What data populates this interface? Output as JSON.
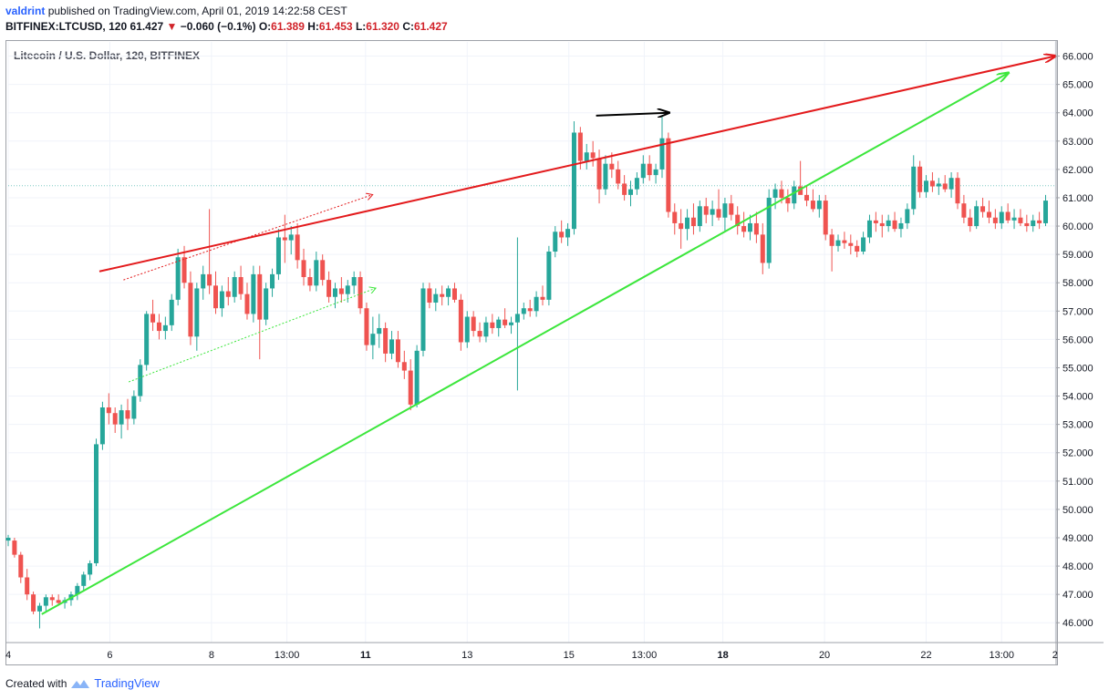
{
  "header": {
    "author": "valdrint",
    "published_text": "published on TradingView.com, April 01, 2019 14:22:58 CEST"
  },
  "quote": {
    "symbol": "BITFINEX:LTCUSD, 120",
    "last": "61.427",
    "arrow": "▼",
    "change": "−0.060 (−0.1%)",
    "open_label": "O:",
    "open": "61.389",
    "high_label": "H:",
    "high": "61.453",
    "low_label": "L:",
    "low": "61.320",
    "close_label": "C:",
    "close": "61.427"
  },
  "footer": {
    "created_with": "Created with",
    "brand": "TradingView"
  },
  "colors": {
    "up": "#26a69a",
    "down": "#ef5350",
    "resistance": "#e31a1c",
    "support": "#3ce63c",
    "arrow": "#000000"
  },
  "chart_data": {
    "type": "candlestick",
    "title": "Litecoin / U.S. Dollar, 120, BITFINEX",
    "ylim": [
      45.3,
      66.5
    ],
    "xlim": [
      0,
      100
    ],
    "y_ticks": [
      "46.000",
      "47.000",
      "48.000",
      "49.000",
      "50.000",
      "51.000",
      "52.000",
      "53.000",
      "54.000",
      "55.000",
      "56.000",
      "57.000",
      "58.000",
      "59.000",
      "60.000",
      "61.000",
      "62.000",
      "63.000",
      "64.000",
      "65.000",
      "66.000"
    ],
    "x_ticks": [
      {
        "x": 0.0,
        "label": "4"
      },
      {
        "x": 9.7,
        "label": "6"
      },
      {
        "x": 19.4,
        "label": "8"
      },
      {
        "x": 26.6,
        "label": "13:00"
      },
      {
        "x": 34.1,
        "label": "11"
      },
      {
        "x": 43.8,
        "label": "13"
      },
      {
        "x": 53.5,
        "label": "15"
      },
      {
        "x": 60.7,
        "label": "13:00"
      },
      {
        "x": 68.2,
        "label": "18"
      },
      {
        "x": 77.9,
        "label": "20"
      },
      {
        "x": 87.6,
        "label": "22"
      },
      {
        "x": 94.8,
        "label": "13:00"
      },
      {
        "x": 99.9,
        "label": "2"
      }
    ],
    "candles": [
      [
        0.0,
        48.9,
        49.1,
        48.7,
        49.0
      ],
      [
        0.6,
        48.9,
        49.0,
        48.3,
        48.4
      ],
      [
        1.2,
        48.4,
        48.5,
        47.4,
        47.6
      ],
      [
        1.8,
        47.6,
        47.9,
        46.8,
        47.0
      ],
      [
        2.4,
        47.0,
        47.1,
        46.3,
        46.4
      ],
      [
        3.0,
        46.4,
        46.7,
        45.8,
        46.6
      ],
      [
        3.6,
        46.6,
        47.0,
        46.4,
        46.9
      ],
      [
        4.2,
        46.9,
        47.0,
        46.6,
        46.8
      ],
      [
        4.8,
        46.8,
        47.0,
        46.6,
        46.7
      ],
      [
        5.4,
        46.7,
        46.9,
        46.5,
        46.8
      ],
      [
        6.0,
        46.8,
        47.1,
        46.6,
        47.0
      ],
      [
        6.6,
        47.0,
        47.4,
        46.8,
        47.3
      ],
      [
        7.2,
        47.3,
        47.8,
        47.1,
        47.7
      ],
      [
        7.8,
        47.7,
        48.2,
        47.5,
        48.1
      ],
      [
        8.4,
        48.1,
        52.5,
        48.0,
        52.3
      ],
      [
        9.0,
        52.3,
        53.8,
        52.1,
        53.6
      ],
      [
        9.6,
        53.6,
        54.1,
        53.0,
        53.4
      ],
      [
        10.2,
        53.4,
        53.6,
        52.7,
        53.0
      ],
      [
        10.8,
        53.0,
        53.7,
        52.5,
        53.5
      ],
      [
        11.4,
        53.5,
        53.9,
        52.8,
        53.2
      ],
      [
        12.0,
        53.2,
        54.2,
        53.0,
        54.0
      ],
      [
        12.6,
        54.0,
        55.3,
        53.8,
        55.1
      ],
      [
        13.2,
        55.1,
        57.0,
        54.9,
        56.9
      ],
      [
        13.8,
        56.9,
        57.4,
        56.3,
        56.6
      ],
      [
        14.4,
        56.6,
        56.9,
        56.0,
        56.3
      ],
      [
        15.0,
        56.3,
        56.8,
        56.0,
        56.5
      ],
      [
        15.6,
        56.5,
        57.6,
        56.3,
        57.4
      ],
      [
        16.2,
        57.4,
        59.2,
        57.2,
        58.9
      ],
      [
        16.8,
        58.9,
        59.3,
        57.8,
        58.0
      ],
      [
        17.4,
        58.0,
        58.4,
        55.8,
        56.1
      ],
      [
        18.0,
        56.1,
        58.0,
        55.6,
        57.8
      ],
      [
        18.6,
        57.8,
        58.6,
        57.4,
        58.3
      ],
      [
        19.2,
        58.3,
        60.6,
        57.6,
        57.9
      ],
      [
        19.8,
        57.9,
        58.4,
        56.9,
        57.1
      ],
      [
        20.4,
        57.1,
        57.9,
        56.8,
        57.7
      ],
      [
        21.0,
        57.7,
        58.2,
        57.2,
        57.5
      ],
      [
        21.6,
        57.5,
        58.4,
        57.3,
        58.2
      ],
      [
        22.2,
        58.2,
        58.6,
        57.4,
        57.6
      ],
      [
        22.8,
        57.6,
        58.0,
        56.7,
        56.9
      ],
      [
        23.4,
        56.9,
        58.6,
        56.6,
        58.3
      ],
      [
        24.0,
        58.3,
        58.6,
        55.3,
        56.7
      ],
      [
        24.6,
        56.7,
        58.0,
        56.5,
        57.8
      ],
      [
        25.2,
        57.8,
        58.5,
        57.5,
        58.3
      ],
      [
        25.8,
        58.3,
        59.9,
        58.1,
        59.6
      ],
      [
        26.4,
        59.6,
        60.4,
        58.7,
        59.5
      ],
      [
        27.0,
        59.5,
        60.0,
        59.0,
        59.7
      ],
      [
        27.6,
        59.7,
        60.1,
        58.5,
        58.8
      ],
      [
        28.2,
        58.8,
        59.2,
        57.9,
        58.2
      ],
      [
        28.8,
        58.2,
        58.5,
        57.7,
        57.9
      ],
      [
        29.4,
        57.9,
        59.1,
        57.7,
        58.8
      ],
      [
        30.0,
        58.8,
        59.0,
        57.9,
        58.1
      ],
      [
        30.6,
        58.1,
        58.4,
        57.3,
        57.5
      ],
      [
        31.2,
        57.5,
        58.0,
        57.1,
        57.8
      ],
      [
        31.8,
        57.8,
        58.2,
        57.3,
        57.6
      ],
      [
        32.4,
        57.6,
        58.1,
        57.3,
        57.9
      ],
      [
        33.0,
        57.9,
        58.4,
        57.6,
        58.2
      ],
      [
        33.6,
        58.2,
        58.4,
        56.9,
        57.1
      ],
      [
        34.2,
        57.1,
        57.3,
        55.6,
        55.8
      ],
      [
        34.8,
        55.8,
        56.8,
        55.3,
        56.2
      ],
      [
        35.4,
        56.2,
        56.9,
        55.7,
        56.4
      ],
      [
        36.0,
        56.4,
        56.6,
        55.2,
        55.5
      ],
      [
        36.6,
        55.5,
        56.3,
        55.3,
        56.0
      ],
      [
        37.2,
        56.0,
        56.3,
        55.0,
        55.2
      ],
      [
        37.8,
        55.2,
        55.6,
        54.6,
        54.9
      ],
      [
        38.4,
        54.9,
        55.3,
        53.5,
        53.7
      ],
      [
        39.0,
        53.7,
        55.8,
        53.6,
        55.6
      ],
      [
        39.6,
        55.6,
        58.0,
        55.4,
        57.8
      ],
      [
        40.2,
        57.8,
        58.0,
        57.1,
        57.3
      ],
      [
        40.8,
        57.3,
        57.8,
        57.0,
        57.6
      ],
      [
        41.4,
        57.6,
        57.9,
        57.2,
        57.5
      ],
      [
        42.0,
        57.5,
        57.9,
        57.2,
        57.8
      ],
      [
        42.6,
        57.8,
        58.0,
        57.3,
        57.4
      ],
      [
        43.2,
        57.4,
        57.6,
        55.6,
        55.9
      ],
      [
        43.8,
        55.9,
        57.0,
        55.7,
        56.8
      ],
      [
        44.4,
        56.8,
        57.0,
        56.1,
        56.3
      ],
      [
        45.0,
        56.3,
        56.6,
        55.9,
        56.1
      ],
      [
        45.6,
        56.1,
        56.8,
        55.9,
        56.6
      ],
      [
        46.2,
        56.6,
        56.9,
        56.2,
        56.4
      ],
      [
        46.8,
        56.4,
        56.8,
        56.1,
        56.7
      ],
      [
        47.4,
        56.7,
        57.1,
        56.4,
        56.5
      ],
      [
        48.0,
        56.5,
        56.8,
        56.2,
        56.6
      ],
      [
        48.6,
        56.6,
        59.6,
        54.2,
        56.9
      ],
      [
        49.2,
        56.9,
        57.3,
        56.7,
        57.1
      ],
      [
        49.8,
        57.1,
        57.4,
        56.8,
        57.0
      ],
      [
        50.4,
        57.0,
        57.7,
        56.8,
        57.5
      ],
      [
        51.0,
        57.5,
        57.9,
        57.2,
        57.4
      ],
      [
        51.6,
        57.4,
        59.3,
        57.2,
        59.1
      ],
      [
        52.2,
        59.1,
        60.0,
        58.9,
        59.8
      ],
      [
        52.8,
        59.8,
        60.2,
        59.4,
        59.6
      ],
      [
        53.4,
        59.6,
        60.1,
        59.3,
        59.9
      ],
      [
        54.0,
        59.9,
        63.7,
        59.7,
        63.3
      ],
      [
        54.6,
        63.3,
        63.5,
        62.0,
        62.3
      ],
      [
        55.2,
        62.3,
        62.9,
        62.0,
        62.6
      ],
      [
        55.8,
        62.6,
        63.0,
        62.1,
        62.4
      ],
      [
        56.4,
        62.4,
        62.7,
        60.8,
        61.3
      ],
      [
        57.0,
        61.3,
        62.5,
        61.1,
        62.2
      ],
      [
        57.6,
        62.2,
        62.6,
        61.7,
        62.0
      ],
      [
        58.2,
        62.0,
        62.3,
        61.3,
        61.5
      ],
      [
        58.8,
        61.5,
        61.8,
        60.9,
        61.1
      ],
      [
        59.4,
        61.1,
        61.6,
        60.7,
        61.3
      ],
      [
        60.0,
        61.3,
        61.9,
        61.1,
        61.7
      ],
      [
        60.6,
        61.7,
        62.5,
        61.5,
        62.2
      ],
      [
        61.2,
        62.2,
        62.5,
        61.6,
        61.8
      ],
      [
        61.8,
        61.8,
        62.2,
        61.5,
        62.0
      ],
      [
        62.4,
        62.0,
        63.9,
        61.7,
        63.1
      ],
      [
        63.0,
        63.1,
        63.3,
        60.3,
        60.5
      ],
      [
        63.6,
        60.5,
        60.8,
        59.7,
        60.1
      ],
      [
        64.2,
        60.1,
        60.6,
        59.2,
        59.9
      ],
      [
        64.8,
        59.9,
        60.6,
        59.5,
        60.3
      ],
      [
        65.4,
        60.3,
        60.8,
        59.7,
        60.0
      ],
      [
        66.0,
        60.0,
        60.9,
        59.8,
        60.7
      ],
      [
        66.6,
        60.7,
        61.0,
        60.1,
        60.4
      ],
      [
        67.2,
        60.4,
        60.9,
        60.0,
        60.6
      ],
      [
        67.8,
        60.6,
        61.3,
        60.2,
        60.3
      ],
      [
        68.4,
        60.3,
        61.0,
        59.8,
        60.8
      ],
      [
        69.0,
        60.8,
        61.1,
        60.2,
        60.4
      ],
      [
        69.6,
        60.4,
        60.7,
        59.7,
        60.0
      ],
      [
        70.2,
        60.0,
        60.5,
        59.6,
        59.8
      ],
      [
        70.8,
        59.8,
        60.4,
        59.5,
        60.1
      ],
      [
        71.4,
        60.1,
        60.5,
        59.4,
        59.7
      ],
      [
        72.0,
        59.7,
        60.1,
        58.3,
        58.7
      ],
      [
        72.6,
        58.7,
        61.3,
        58.5,
        61.0
      ],
      [
        73.2,
        61.0,
        61.5,
        60.6,
        61.3
      ],
      [
        73.8,
        61.3,
        61.6,
        60.8,
        61.0
      ],
      [
        74.4,
        61.0,
        61.3,
        60.5,
        60.8
      ],
      [
        75.0,
        60.8,
        61.6,
        60.6,
        61.4
      ],
      [
        75.6,
        61.4,
        62.3,
        61.2,
        61.1
      ],
      [
        76.2,
        61.1,
        61.4,
        60.7,
        60.9
      ],
      [
        76.8,
        60.9,
        61.3,
        60.5,
        60.6
      ],
      [
        77.4,
        60.6,
        61.1,
        60.3,
        60.9
      ],
      [
        78.0,
        60.9,
        61.1,
        59.5,
        59.7
      ],
      [
        78.6,
        59.7,
        59.9,
        58.4,
        59.3
      ],
      [
        79.2,
        59.3,
        59.7,
        59.1,
        59.5
      ],
      [
        79.8,
        59.5,
        59.8,
        59.2,
        59.4
      ],
      [
        80.4,
        59.4,
        59.7,
        59.0,
        59.3
      ],
      [
        81.0,
        59.3,
        59.5,
        58.9,
        59.1
      ],
      [
        81.6,
        59.1,
        59.8,
        59.0,
        59.6
      ],
      [
        82.2,
        59.6,
        60.4,
        59.4,
        60.2
      ],
      [
        82.8,
        60.2,
        60.5,
        59.8,
        60.1
      ],
      [
        83.4,
        60.1,
        60.4,
        59.6,
        60.0
      ],
      [
        84.0,
        60.0,
        60.4,
        59.8,
        60.2
      ],
      [
        84.6,
        60.2,
        60.5,
        59.8,
        59.9
      ],
      [
        85.2,
        59.9,
        60.3,
        59.6,
        60.1
      ],
      [
        85.8,
        60.1,
        60.8,
        59.9,
        60.6
      ],
      [
        86.4,
        60.6,
        62.5,
        60.4,
        62.1
      ],
      [
        87.0,
        62.1,
        62.3,
        61.0,
        61.2
      ],
      [
        87.6,
        61.2,
        61.8,
        61.0,
        61.6
      ],
      [
        88.2,
        61.6,
        61.9,
        61.2,
        61.4
      ],
      [
        88.8,
        61.4,
        61.7,
        61.1,
        61.5
      ],
      [
        89.4,
        61.5,
        61.8,
        61.2,
        61.3
      ],
      [
        90.0,
        61.3,
        61.9,
        61.0,
        61.7
      ],
      [
        90.6,
        61.7,
        61.9,
        60.6,
        60.8
      ],
      [
        91.2,
        60.8,
        61.1,
        60.1,
        60.3
      ],
      [
        91.8,
        60.3,
        60.6,
        59.8,
        60.0
      ],
      [
        92.4,
        60.0,
        60.9,
        59.9,
        60.7
      ],
      [
        93.0,
        60.7,
        61.0,
        60.3,
        60.5
      ],
      [
        93.6,
        60.5,
        60.9,
        60.1,
        60.3
      ],
      [
        94.2,
        60.3,
        60.6,
        59.9,
        60.1
      ],
      [
        94.8,
        60.1,
        60.7,
        59.9,
        60.5
      ],
      [
        95.4,
        60.5,
        60.8,
        60.1,
        60.2
      ],
      [
        96.0,
        60.2,
        60.6,
        59.9,
        60.3
      ],
      [
        96.6,
        60.3,
        60.6,
        60.0,
        60.1
      ],
      [
        97.2,
        60.1,
        60.4,
        59.8,
        60.0
      ],
      [
        97.8,
        60.0,
        60.4,
        59.8,
        60.2
      ],
      [
        98.4,
        60.2,
        60.5,
        59.9,
        60.1
      ],
      [
        99.0,
        60.1,
        61.1,
        60.0,
        60.9
      ]
    ],
    "annotations": [
      {
        "type": "line",
        "color": "resistance",
        "x1": 8.7,
        "y1": 58.4,
        "x2": 99.9,
        "y2": 66.0,
        "arrow": true
      },
      {
        "type": "line",
        "color": "support",
        "x1": 3.2,
        "y1": 46.3,
        "x2": 95.4,
        "y2": 65.4,
        "arrow": true
      },
      {
        "type": "line",
        "color": "arrow",
        "x1": 56.1,
        "y1": 63.9,
        "x2": 63.0,
        "y2": 64.0,
        "arrow": true
      },
      {
        "type": "dotted",
        "color": "resistance",
        "x1": 11.0,
        "y1": 58.1,
        "x2": 34.7,
        "y2": 61.1,
        "arrow": true
      },
      {
        "type": "dotted",
        "color": "support",
        "x1": 11.5,
        "y1": 54.5,
        "x2": 35.0,
        "y2": 57.8,
        "arrow": true
      }
    ]
  }
}
